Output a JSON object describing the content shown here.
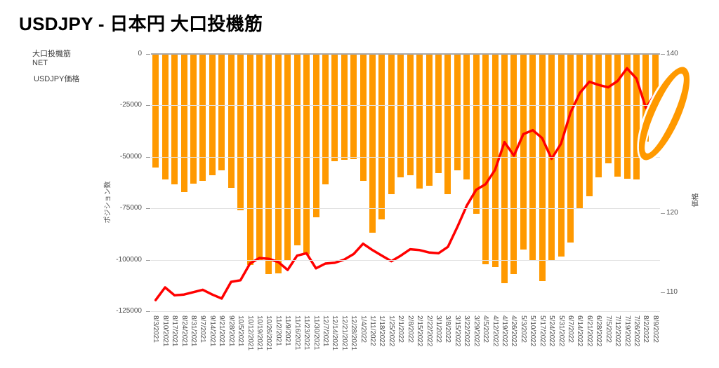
{
  "title": "USDJPY - 日本円 大口投機筋",
  "legend": {
    "items": [
      {
        "label": "大口投機筋",
        "label2": "NET",
        "swatch": "square",
        "color": "#FF9900"
      },
      {
        "label": "USDJPY価格",
        "swatch": "line",
        "color": "#FF0000"
      }
    ]
  },
  "colors": {
    "bar": "#FF9900",
    "line": "#FF0000",
    "annotation": "#FF9900",
    "annotation_outline": "#FFFFFF",
    "gridline": "#E2E2E2",
    "zero_line": "#A8A8A8",
    "tick_text": "#4D4D4D"
  },
  "chart_data": {
    "type": "bar",
    "subtype": "combo-bar-line",
    "title": "USDJPY - 日本円 大口投機筋",
    "grid": "horizontal",
    "legend_position": "left",
    "categories": [
      "8/3/2021",
      "8/10/2021",
      "8/17/2021",
      "8/24/2021",
      "8/31/2021",
      "9/7/2021",
      "9/14/2021",
      "9/21/2021",
      "9/28/2021",
      "10/5/2021",
      "10/12/2021",
      "10/19/2021",
      "10/26/2021",
      "11/2/2021",
      "11/9/2021",
      "11/16/2021",
      "11/23/2021",
      "11/30/2021",
      "12/7/2021",
      "12/14/2021",
      "12/21/2021",
      "12/28/2021",
      "1/4/2022",
      "1/11/2022",
      "1/18/2022",
      "1/25/2022",
      "2/1/2022",
      "2/8/2022",
      "2/15/2022",
      "2/22/2022",
      "3/1/2022",
      "3/8/2022",
      "3/15/2022",
      "3/22/2022",
      "3/29/2022",
      "4/5/2022",
      "4/12/2022",
      "4/19/2022",
      "4/26/2022",
      "5/3/2022",
      "5/10/2022",
      "5/17/2022",
      "5/24/2022",
      "5/31/2022",
      "6/7/2022",
      "6/14/2022",
      "6/21/2022",
      "6/28/2022",
      "7/5/2022",
      "7/12/2022",
      "7/19/2022",
      "7/26/2022",
      "8/2/2022",
      "8/9/2022"
    ],
    "series": [
      {
        "name": "大口投機筋 NET",
        "type": "bar",
        "axis": "left",
        "color": "#FF9900",
        "values": [
          -55000,
          -61000,
          -63500,
          -67000,
          -63000,
          -61500,
          -59000,
          -56500,
          -65000,
          -76000,
          -102500,
          -100500,
          -107000,
          -106500,
          -100000,
          -93000,
          -97500,
          -79500,
          -63500,
          -52000,
          -51500,
          -51000,
          -61500,
          -87000,
          -80500,
          -68000,
          -60000,
          -59000,
          -65500,
          -64000,
          -58000,
          -68000,
          -56500,
          -61000,
          -77500,
          -102000,
          -103500,
          -111500,
          -107000,
          -95000,
          -100500,
          -110500,
          -100500,
          -98500,
          -91500,
          -75000,
          -69000,
          -60000,
          -53000,
          -59500,
          -60500,
          -61000,
          -42500,
          -26000
        ]
      },
      {
        "name": "USDJPY価格",
        "type": "line",
        "axis": "right",
        "color": "#FF0000",
        "values": [
          109.0,
          110.6,
          109.6,
          109.7,
          110.0,
          110.3,
          109.7,
          109.2,
          111.3,
          111.5,
          113.6,
          114.3,
          114.2,
          113.8,
          112.8,
          114.6,
          114.9,
          113.0,
          113.6,
          113.7,
          114.1,
          114.8,
          116.1,
          115.3,
          114.6,
          113.9,
          114.6,
          115.4,
          115.3,
          115.0,
          114.9,
          115.7,
          118.2,
          120.9,
          122.9,
          123.6,
          125.4,
          128.9,
          127.2,
          129.9,
          130.4,
          129.4,
          126.8,
          128.7,
          132.6,
          135.1,
          136.5,
          136.1,
          135.8,
          136.6,
          138.2,
          136.9,
          133.2,
          135.0
        ]
      }
    ],
    "left_axis": {
      "title": "ポジション数",
      "tick_labels": [
        "0",
        "-25000",
        "-50000",
        "-75000",
        "-100000",
        "-125000"
      ],
      "range": [
        0,
        -125000
      ]
    },
    "right_axis": {
      "title": "価格",
      "tick_labels": [
        "140",
        "120",
        "110"
      ],
      "tick_values": [
        140,
        120,
        110
      ],
      "range": [
        140,
        107.6
      ]
    },
    "annotation": {
      "shape": "ellipse",
      "color": "#FF9900",
      "outline": "#FFFFFF",
      "highlights": [
        "8/2/2022",
        "8/9/2022"
      ]
    }
  }
}
